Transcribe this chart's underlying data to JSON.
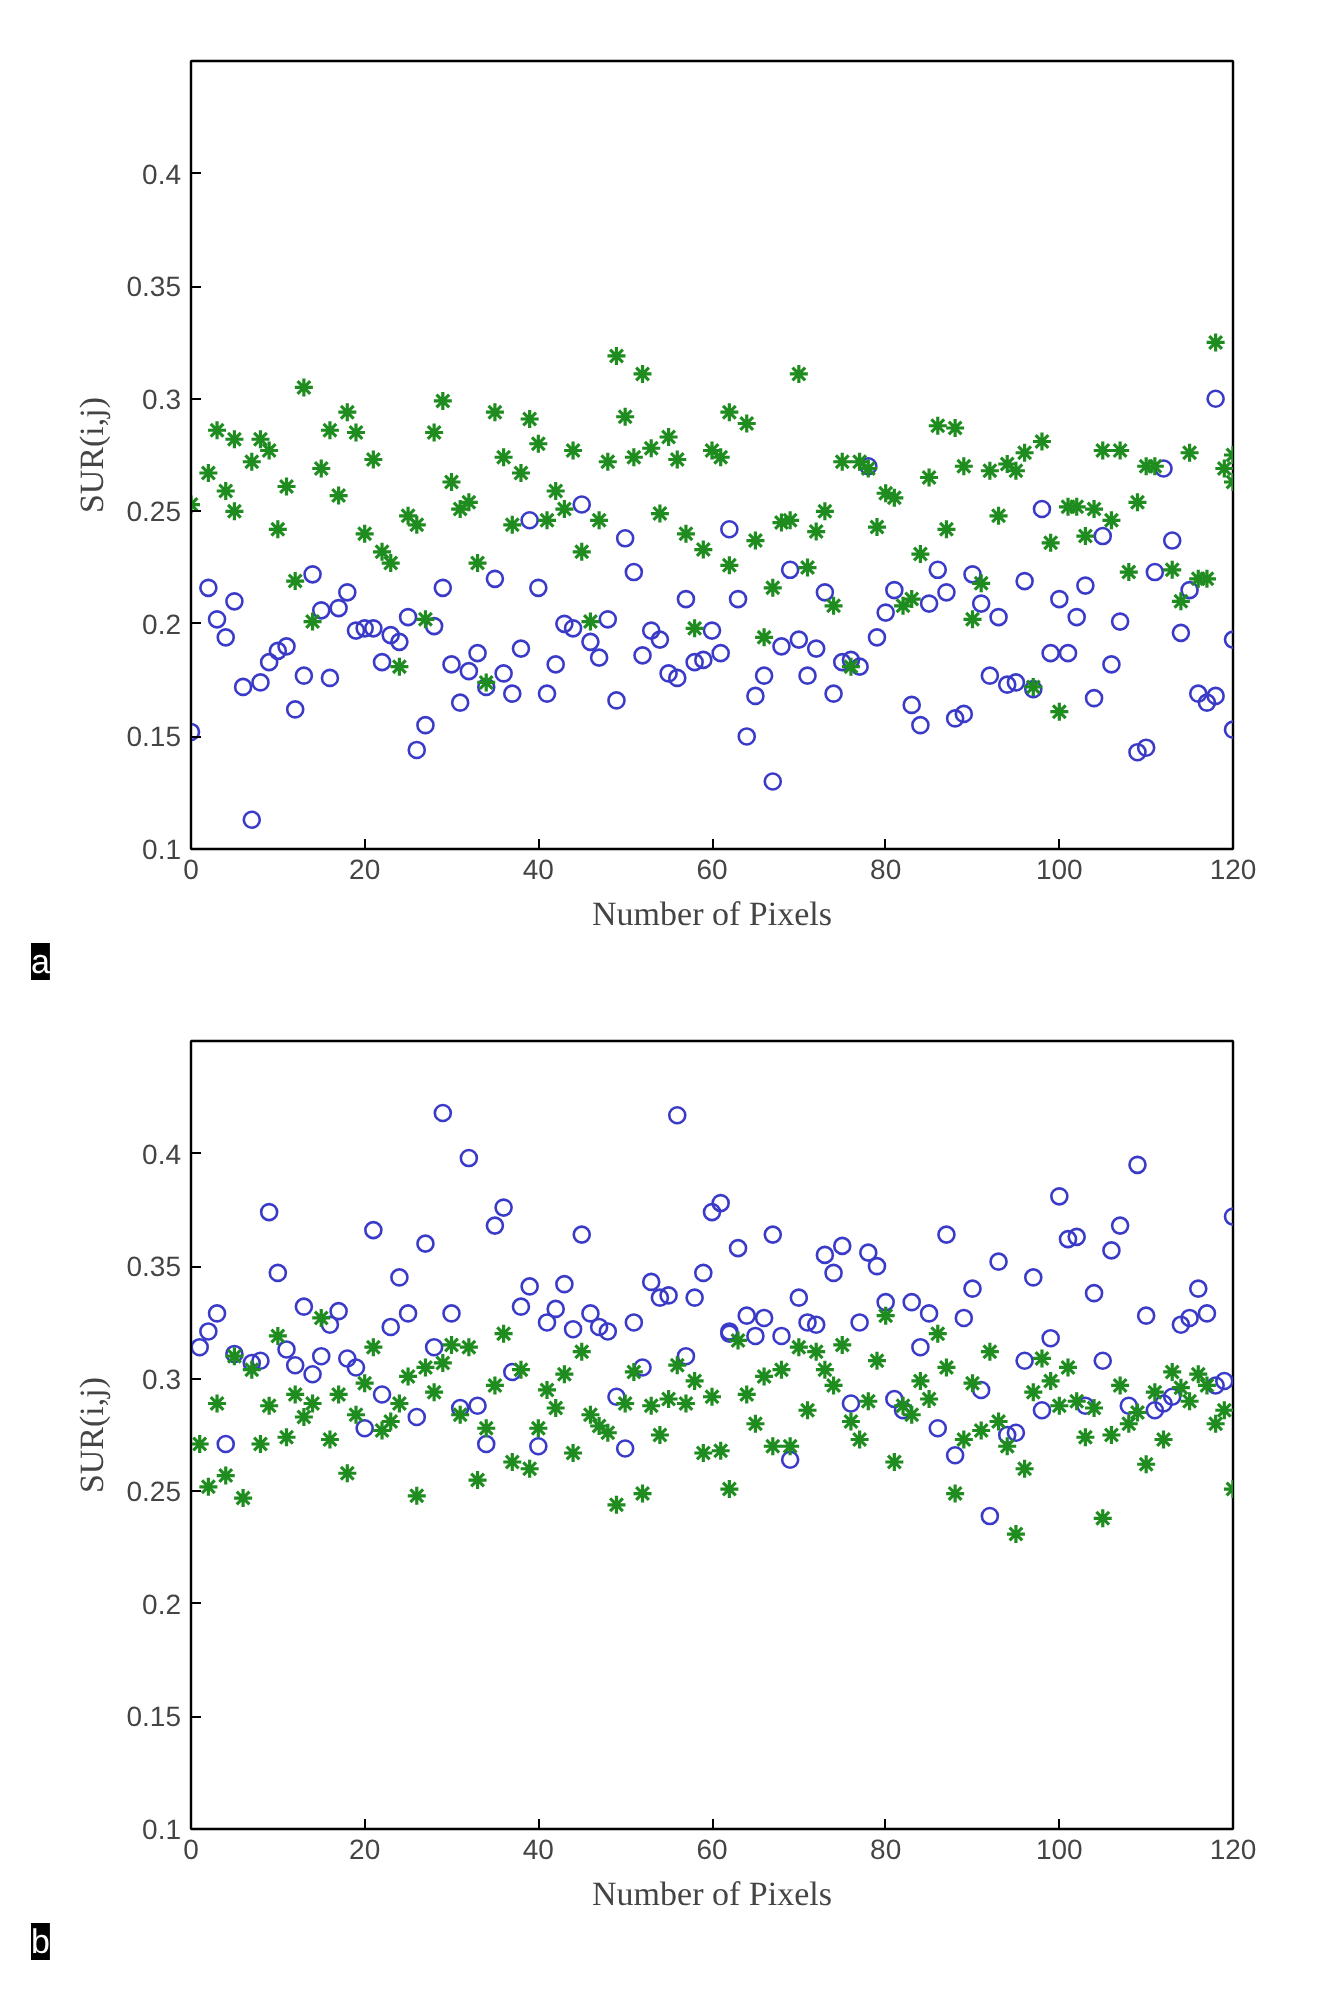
{
  "chart_data": [
    {
      "type": "scatter",
      "xlabel": "Number of Pixels",
      "ylabel": "SUR(i,j)",
      "xlim": [
        0,
        120
      ],
      "ylim": [
        0.1,
        0.45
      ],
      "xticks": [
        0,
        20,
        40,
        60,
        80,
        100,
        120
      ],
      "yticks": [
        0.1,
        0.15,
        0.2,
        0.25,
        0.3,
        0.35,
        0.4
      ],
      "annotations": [
        "a"
      ],
      "series": [
        {
          "color": "#3a3ac8",
          "marker": "circle",
          "x": [
            0,
            2,
            3,
            4,
            5,
            6,
            7,
            8,
            9,
            10,
            11,
            12,
            13,
            14,
            15,
            16,
            17,
            18,
            19,
            20,
            21,
            22,
            23,
            24,
            25,
            26,
            27,
            28,
            29,
            30,
            31,
            32,
            33,
            34,
            35,
            36,
            37,
            38,
            39,
            40,
            41,
            42,
            43,
            44,
            45,
            46,
            47,
            48,
            49,
            50,
            51,
            52,
            53,
            54,
            55,
            56,
            57,
            58,
            59,
            60,
            61,
            62,
            63,
            64,
            65,
            66,
            67,
            68,
            69,
            70,
            71,
            72,
            73,
            74,
            75,
            76,
            77,
            78,
            79,
            80,
            81,
            83,
            84,
            85,
            86,
            87,
            88,
            89,
            90,
            91,
            92,
            93,
            94,
            95,
            96,
            97,
            98,
            99,
            100,
            101,
            102,
            103,
            104,
            105,
            106,
            107,
            109,
            110,
            111,
            112,
            113,
            114,
            115,
            116,
            117,
            118,
            118,
            120,
            120
          ],
          "values": [
            0.152,
            0.216,
            0.202,
            0.194,
            0.21,
            0.172,
            0.113,
            0.174,
            0.183,
            0.188,
            0.19,
            0.162,
            0.177,
            0.222,
            0.206,
            0.176,
            0.207,
            0.214,
            0.197,
            0.198,
            0.198,
            0.183,
            0.195,
            0.192,
            0.203,
            0.144,
            0.155,
            0.199,
            0.216,
            0.182,
            0.165,
            0.179,
            0.187,
            0.172,
            0.22,
            0.178,
            0.169,
            0.189,
            0.246,
            0.216,
            0.169,
            0.182,
            0.2,
            0.198,
            0.253,
            0.192,
            0.185,
            0.202,
            0.166,
            0.238,
            0.223,
            0.186,
            0.197,
            0.193,
            0.178,
            0.176,
            0.211,
            0.183,
            0.184,
            0.197,
            0.187,
            0.242,
            0.211,
            0.15,
            0.168,
            0.177,
            0.13,
            0.19,
            0.224,
            0.193,
            0.177,
            0.189,
            0.214,
            0.169,
            0.183,
            0.184,
            0.181,
            0.27,
            0.194,
            0.205,
            0.215,
            0.164,
            0.155,
            0.209,
            0.224,
            0.214,
            0.158,
            0.16,
            0.222,
            0.209,
            0.177,
            0.203,
            0.173,
            0.174,
            0.219,
            0.171,
            0.251,
            0.187,
            0.211,
            0.187,
            0.203,
            0.217,
            0.167,
            0.239,
            0.182,
            0.201,
            0.143,
            0.145,
            0.223,
            0.269,
            0.237,
            0.196,
            0.215,
            0.169,
            0.165,
            0.3,
            0.168,
            0.193,
            0.153
          ]
        },
        {
          "color": "#1e8c1e",
          "marker": "cross",
          "x": [
            0,
            2,
            3,
            4,
            5,
            5,
            7,
            8,
            9,
            10,
            11,
            12,
            13,
            14,
            15,
            16,
            17,
            18,
            19,
            20,
            21,
            22,
            23,
            24,
            25,
            26,
            27,
            28,
            29,
            30,
            31,
            32,
            33,
            34,
            35,
            36,
            37,
            38,
            39,
            40,
            41,
            42,
            43,
            44,
            45,
            46,
            47,
            48,
            49,
            50,
            51,
            52,
            53,
            54,
            55,
            56,
            57,
            58,
            59,
            60,
            61,
            62,
            62,
            64,
            65,
            66,
            67,
            68,
            69,
            70,
            71,
            72,
            73,
            74,
            75,
            76,
            77,
            78,
            79,
            80,
            81,
            82,
            83,
            84,
            85,
            86,
            87,
            88,
            89,
            90,
            91,
            92,
            93,
            94,
            95,
            96,
            97,
            98,
            99,
            100,
            101,
            102,
            103,
            104,
            105,
            106,
            107,
            108,
            109,
            110,
            111,
            113,
            114,
            115,
            116,
            117,
            118,
            119,
            120,
            120
          ],
          "values": [
            0.253,
            0.267,
            0.286,
            0.259,
            0.25,
            0.282,
            0.272,
            0.282,
            0.277,
            0.242,
            0.261,
            0.219,
            0.305,
            0.201,
            0.269,
            0.286,
            0.257,
            0.294,
            0.285,
            0.24,
            0.273,
            0.232,
            0.227,
            0.181,
            0.248,
            0.244,
            0.202,
            0.285,
            0.299,
            0.263,
            0.251,
            0.254,
            0.227,
            0.174,
            0.294,
            0.274,
            0.244,
            0.267,
            0.291,
            0.28,
            0.246,
            0.259,
            0.251,
            0.277,
            0.232,
            0.201,
            0.246,
            0.272,
            0.319,
            0.292,
            0.274,
            0.311,
            0.278,
            0.249,
            0.283,
            0.273,
            0.24,
            0.198,
            0.233,
            0.277,
            0.274,
            0.294,
            0.226,
            0.289,
            0.237,
            0.194,
            0.216,
            0.245,
            0.246,
            0.311,
            0.225,
            0.241,
            0.25,
            0.208,
            0.272,
            0.181,
            0.272,
            0.269,
            0.243,
            0.258,
            0.256,
            0.208,
            0.211,
            0.231,
            0.265,
            0.288,
            0.242,
            0.287,
            0.27,
            0.202,
            0.218,
            0.268,
            0.248,
            0.271,
            0.268,
            0.276,
            0.172,
            0.281,
            0.236,
            0.161,
            0.252,
            0.252,
            0.239,
            0.251,
            0.277,
            0.246,
            0.277,
            0.223,
            0.254,
            0.27,
            0.27,
            0.224,
            0.21,
            0.276,
            0.22,
            0.22,
            0.325,
            0.269,
            0.263,
            0.275
          ]
        }
      ]
    },
    {
      "type": "scatter",
      "xlabel": "Number of Pixels",
      "ylabel": "SUR(i,j)",
      "xlim": [
        0,
        120
      ],
      "ylim": [
        0.1,
        0.45
      ],
      "xticks": [
        0,
        20,
        40,
        60,
        80,
        100,
        120
      ],
      "yticks": [
        0.1,
        0.15,
        0.2,
        0.25,
        0.3,
        0.35,
        0.4
      ],
      "annotations": [
        "b"
      ],
      "series": [
        {
          "color": "#3a3ac8",
          "marker": "circle",
          "x": [
            1,
            2,
            3,
            4,
            5,
            7,
            8,
            9,
            10,
            11,
            12,
            13,
            14,
            15,
            16,
            17,
            18,
            19,
            20,
            21,
            22,
            23,
            24,
            25,
            26,
            27,
            28,
            29,
            30,
            31,
            32,
            33,
            34,
            35,
            36,
            37,
            38,
            39,
            40,
            41,
            42,
            43,
            44,
            45,
            46,
            47,
            48,
            49,
            50,
            51,
            52,
            53,
            54,
            55,
            56,
            57,
            58,
            59,
            60,
            61,
            62,
            62,
            63,
            64,
            65,
            66,
            67,
            68,
            69,
            70,
            71,
            72,
            73,
            74,
            75,
            76,
            77,
            78,
            79,
            80,
            81,
            82,
            83,
            84,
            85,
            86,
            87,
            88,
            89,
            90,
            91,
            92,
            93,
            94,
            95,
            96,
            97,
            98,
            99,
            100,
            101,
            102,
            103,
            104,
            105,
            106,
            107,
            108,
            109,
            110,
            111,
            112,
            113,
            114,
            115,
            116,
            117,
            118,
            119,
            120
          ],
          "values": [
            0.314,
            0.321,
            0.329,
            0.271,
            0.311,
            0.307,
            0.308,
            0.374,
            0.347,
            0.313,
            0.306,
            0.332,
            0.302,
            0.31,
            0.324,
            0.33,
            0.309,
            0.305,
            0.278,
            0.366,
            0.293,
            0.323,
            0.345,
            0.329,
            0.283,
            0.36,
            0.314,
            0.418,
            0.329,
            0.287,
            0.398,
            0.288,
            0.271,
            0.368,
            0.376,
            0.303,
            0.332,
            0.341,
            0.27,
            0.325,
            0.331,
            0.342,
            0.322,
            0.364,
            0.329,
            0.323,
            0.321,
            0.292,
            0.269,
            0.325,
            0.305,
            0.343,
            0.336,
            0.337,
            0.417,
            0.31,
            0.336,
            0.347,
            0.374,
            0.378,
            0.321,
            0.32,
            0.358,
            0.328,
            0.319,
            0.327,
            0.364,
            0.319,
            0.264,
            0.336,
            0.325,
            0.324,
            0.355,
            0.347,
            0.359,
            0.289,
            0.325,
            0.356,
            0.35,
            0.334,
            0.291,
            0.286,
            0.334,
            0.314,
            0.329,
            0.278,
            0.364,
            0.266,
            0.327,
            0.34,
            0.295,
            0.239,
            0.352,
            0.275,
            0.276,
            0.308,
            0.345,
            0.286,
            0.318,
            0.381,
            0.362,
            0.363,
            0.288,
            0.338,
            0.308,
            0.357,
            0.368,
            0.288,
            0.395,
            0.328,
            0.286,
            0.289,
            0.292,
            0.324,
            0.327,
            0.34,
            0.329,
            0.297,
            0.299,
            0.372
          ]
        },
        {
          "color": "#1e8c1e",
          "marker": "cross",
          "x": [
            1,
            2,
            3,
            4,
            5,
            6,
            7,
            8,
            9,
            10,
            11,
            12,
            13,
            14,
            15,
            16,
            17,
            18,
            19,
            20,
            21,
            22,
            23,
            24,
            25,
            26,
            27,
            28,
            29,
            30,
            31,
            32,
            33,
            34,
            35,
            36,
            37,
            38,
            39,
            40,
            41,
            42,
            43,
            44,
            45,
            46,
            47,
            48,
            49,
            50,
            51,
            52,
            53,
            54,
            55,
            56,
            57,
            58,
            59,
            60,
            61,
            62,
            63,
            64,
            65,
            66,
            67,
            68,
            69,
            70,
            71,
            72,
            73,
            74,
            75,
            76,
            77,
            78,
            79,
            80,
            81,
            82,
            83,
            84,
            85,
            86,
            87,
            88,
            89,
            90,
            91,
            92,
            93,
            94,
            95,
            96,
            97,
            98,
            99,
            100,
            101,
            102,
            103,
            104,
            105,
            106,
            107,
            108,
            109,
            110,
            111,
            112,
            113,
            114,
            115,
            116,
            117,
            118,
            119,
            120
          ],
          "values": [
            0.271,
            0.252,
            0.289,
            0.257,
            0.31,
            0.247,
            0.304,
            0.271,
            0.288,
            0.319,
            0.274,
            0.293,
            0.283,
            0.289,
            0.327,
            0.273,
            0.293,
            0.258,
            0.284,
            0.298,
            0.314,
            0.277,
            0.281,
            0.289,
            0.301,
            0.248,
            0.305,
            0.294,
            0.307,
            0.315,
            0.284,
            0.314,
            0.255,
            0.278,
            0.297,
            0.32,
            0.263,
            0.304,
            0.26,
            0.278,
            0.295,
            0.287,
            0.302,
            0.267,
            0.312,
            0.284,
            0.279,
            0.276,
            0.244,
            0.289,
            0.303,
            0.249,
            0.288,
            0.275,
            0.291,
            0.306,
            0.289,
            0.299,
            0.267,
            0.292,
            0.268,
            0.251,
            0.317,
            0.293,
            0.28,
            0.301,
            0.27,
            0.304,
            0.27,
            0.314,
            0.286,
            0.312,
            0.304,
            0.297,
            0.315,
            0.281,
            0.273,
            0.29,
            0.308,
            0.328,
            0.263,
            0.288,
            0.284,
            0.299,
            0.291,
            0.32,
            0.305,
            0.249,
            0.273,
            0.298,
            0.277,
            0.312,
            0.281,
            0.27,
            0.231,
            0.26,
            0.294,
            0.309,
            0.299,
            0.288,
            0.305,
            0.29,
            0.274,
            0.287,
            0.238,
            0.275,
            0.297,
            0.28,
            0.285,
            0.262,
            0.294,
            0.273,
            0.303,
            0.296,
            0.29,
            0.302,
            0.297,
            0.28,
            0.286,
            0.251
          ]
        }
      ]
    }
  ]
}
